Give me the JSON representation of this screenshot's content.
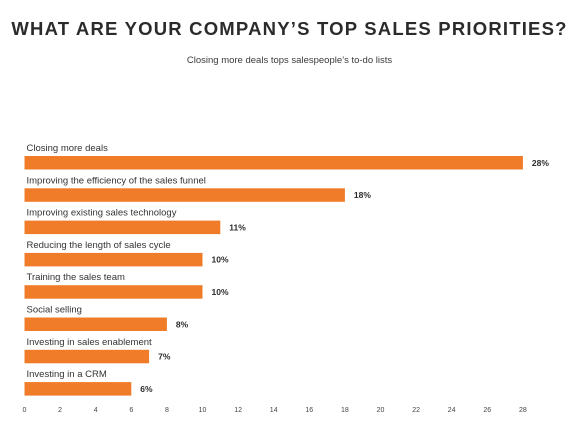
{
  "chart_data": {
    "type": "bar",
    "orientation": "horizontal",
    "title": "WHAT ARE YOUR COMPANY’S TOP SALES PRIORITIES?",
    "subtitle": "Closing more deals tops salespeople’s to-do lists",
    "categories": [
      "Closing more deals",
      "Improving the efficiency of the sales funnel",
      "Improving existing sales technology",
      "Reducing the length of sales cycle",
      "Training the sales team",
      "Social selling",
      "Investing in sales enablement",
      "Investing in a CRM"
    ],
    "values": [
      28,
      18,
      11,
      10,
      10,
      8,
      7,
      6
    ],
    "value_labels": [
      "28%",
      "18%",
      "11%",
      "10%",
      "10%",
      "8%",
      "7%",
      "6%"
    ],
    "xlim": [
      0,
      28
    ],
    "xticks": [
      0,
      2,
      4,
      6,
      8,
      10,
      12,
      14,
      16,
      18,
      20,
      22,
      24,
      26,
      28
    ],
    "grid": false,
    "bar_color": "#f07c2a"
  }
}
